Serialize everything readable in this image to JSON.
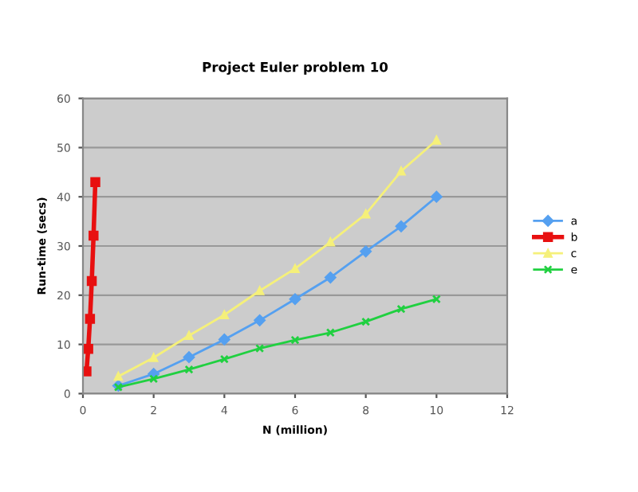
{
  "chart_data": {
    "type": "line",
    "title": "Project Euler problem 10",
    "xlabel": "N (million)",
    "ylabel": "Run-time (secs)",
    "xlim": [
      0,
      12
    ],
    "xticks": [
      0,
      2,
      4,
      6,
      8,
      10,
      12
    ],
    "ylim": [
      0,
      60
    ],
    "yticks": [
      0,
      10,
      20,
      30,
      40,
      50,
      60
    ],
    "grid": "y",
    "legend": "right",
    "series": [
      {
        "name": "a",
        "color": "#55a0f0",
        "marker": "diamond",
        "x": [
          1,
          2,
          3,
          4,
          5,
          6,
          7,
          8,
          9,
          10
        ],
        "values": [
          1.6,
          4.0,
          7.4,
          11.0,
          14.9,
          19.2,
          23.6,
          28.9,
          34.0,
          40.0
        ]
      },
      {
        "name": "b",
        "color": "#e81010",
        "marker": "square",
        "x": [
          0.1,
          0.15,
          0.2,
          0.25,
          0.3,
          0.35
        ],
        "values": [
          4.5,
          9.1,
          15.2,
          22.9,
          32.1,
          43.0
        ]
      },
      {
        "name": "c",
        "color": "#f5f07a",
        "marker": "triangle",
        "x": [
          1,
          2,
          3,
          4,
          5,
          6,
          7,
          8,
          9,
          10
        ],
        "values": [
          3.5,
          7.3,
          11.8,
          16.0,
          20.9,
          25.4,
          30.8,
          36.5,
          45.2,
          51.5
        ]
      },
      {
        "name": "e",
        "color": "#20d040",
        "marker": "cross",
        "x": [
          1,
          2,
          3,
          4,
          5,
          6,
          7,
          8,
          9,
          10
        ],
        "values": [
          1.3,
          3.0,
          4.9,
          7.0,
          9.2,
          10.9,
          12.4,
          14.6,
          17.2,
          19.2
        ]
      }
    ]
  }
}
